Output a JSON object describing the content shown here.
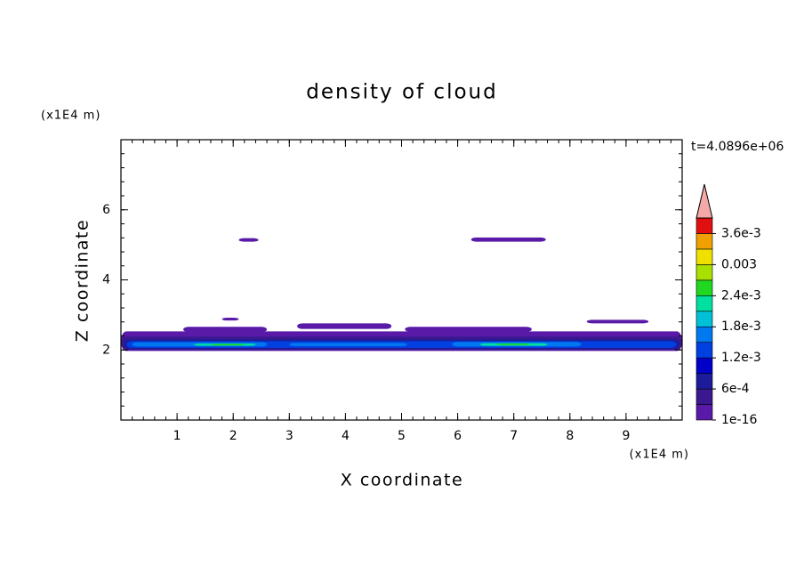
{
  "chart_data": {
    "type": "contour",
    "title": "density of cloud",
    "x_label": "X coordinate",
    "y_label": "Z coordinate",
    "x_unit": "(x1E4 m)",
    "y_unit": "(x1E4 m)",
    "annotation": "t=4.0896e+06",
    "xlim": [
      0,
      10
    ],
    "ylim": [
      0,
      8
    ],
    "xticks": [
      1,
      2,
      3,
      4,
      5,
      6,
      7,
      8,
      9
    ],
    "yticks": [
      2,
      4,
      6
    ],
    "colorbar": {
      "clim": [
        0,
        0.0039
      ],
      "colors": [
        "#5a1aa8",
        "#3a1890",
        "#1c1c9a",
        "#0000c8",
        "#0040e0",
        "#0078f0",
        "#00c0d8",
        "#00e0a0",
        "#20d820",
        "#a8e000",
        "#f0e000",
        "#f0a000",
        "#f06000"
      ],
      "top_color": "#e01010",
      "extend_color": "#f4a8a8",
      "ticks": [
        {
          "value": 1e-16,
          "label": "1e-16"
        },
        {
          "value": 0.0006,
          "label": "6e-4"
        },
        {
          "value": 0.0012,
          "label": "1.2e-3"
        },
        {
          "value": 0.0018,
          "label": "1.8e-3"
        },
        {
          "value": 0.0024,
          "label": "2.4e-3"
        },
        {
          "value": 0.003,
          "label": "0.003"
        },
        {
          "value": 0.0036,
          "label": "3.6e-3"
        }
      ]
    },
    "regions": [
      {
        "x": [
          2.1,
          2.45
        ],
        "y": [
          5.09,
          5.19
        ],
        "value": 0.0001
      },
      {
        "x": [
          6.24,
          7.57
        ],
        "y": [
          5.09,
          5.21
        ],
        "value": 0.0001
      },
      {
        "x": [
          1.8,
          2.1
        ],
        "y": [
          2.84,
          2.92
        ],
        "value": 0.0001
      },
      {
        "x": [
          1.11,
          2.6
        ],
        "y": [
          2.51,
          2.66
        ],
        "value": 0.0001
      },
      {
        "x": [
          3.14,
          4.82
        ],
        "y": [
          2.6,
          2.76
        ],
        "value": 0.0001
      },
      {
        "x": [
          5.06,
          7.32
        ],
        "y": [
          2.52,
          2.66
        ],
        "value": 0.0001
      },
      {
        "x": [
          8.3,
          9.4
        ],
        "y": [
          2.76,
          2.86
        ],
        "value": 0.0001
      },
      {
        "x": [
          0,
          10
        ],
        "y": [
          1.97,
          2.53
        ],
        "value": 0.0001
      },
      {
        "x": [
          0,
          10
        ],
        "y": [
          2.0,
          2.38
        ],
        "value": 0.0004
      },
      {
        "x": [
          0.05,
          9.95
        ],
        "y": [
          2.03,
          2.3
        ],
        "value": 0.0008
      },
      {
        "x": [
          0.1,
          9.9
        ],
        "y": [
          2.06,
          2.25
        ],
        "value": 0.0013
      },
      {
        "x": [
          0.2,
          2.6
        ],
        "y": [
          2.1,
          2.22
        ],
        "value": 0.0017
      },
      {
        "x": [
          3.0,
          5.1
        ],
        "y": [
          2.11,
          2.2
        ],
        "value": 0.0017
      },
      {
        "x": [
          5.9,
          8.2
        ],
        "y": [
          2.1,
          2.23
        ],
        "value": 0.0017
      },
      {
        "x": [
          1.3,
          2.4
        ],
        "y": [
          2.12,
          2.18
        ],
        "value": 0.0022
      },
      {
        "x": [
          6.4,
          7.6
        ],
        "y": [
          2.12,
          2.19
        ],
        "value": 0.0022
      },
      {
        "x": [
          1.6,
          2.2
        ],
        "y": [
          2.13,
          2.17
        ],
        "value": 0.0026
      },
      {
        "x": [
          6.7,
          7.3
        ],
        "y": [
          2.14,
          2.18
        ],
        "value": 0.0026
      }
    ]
  }
}
